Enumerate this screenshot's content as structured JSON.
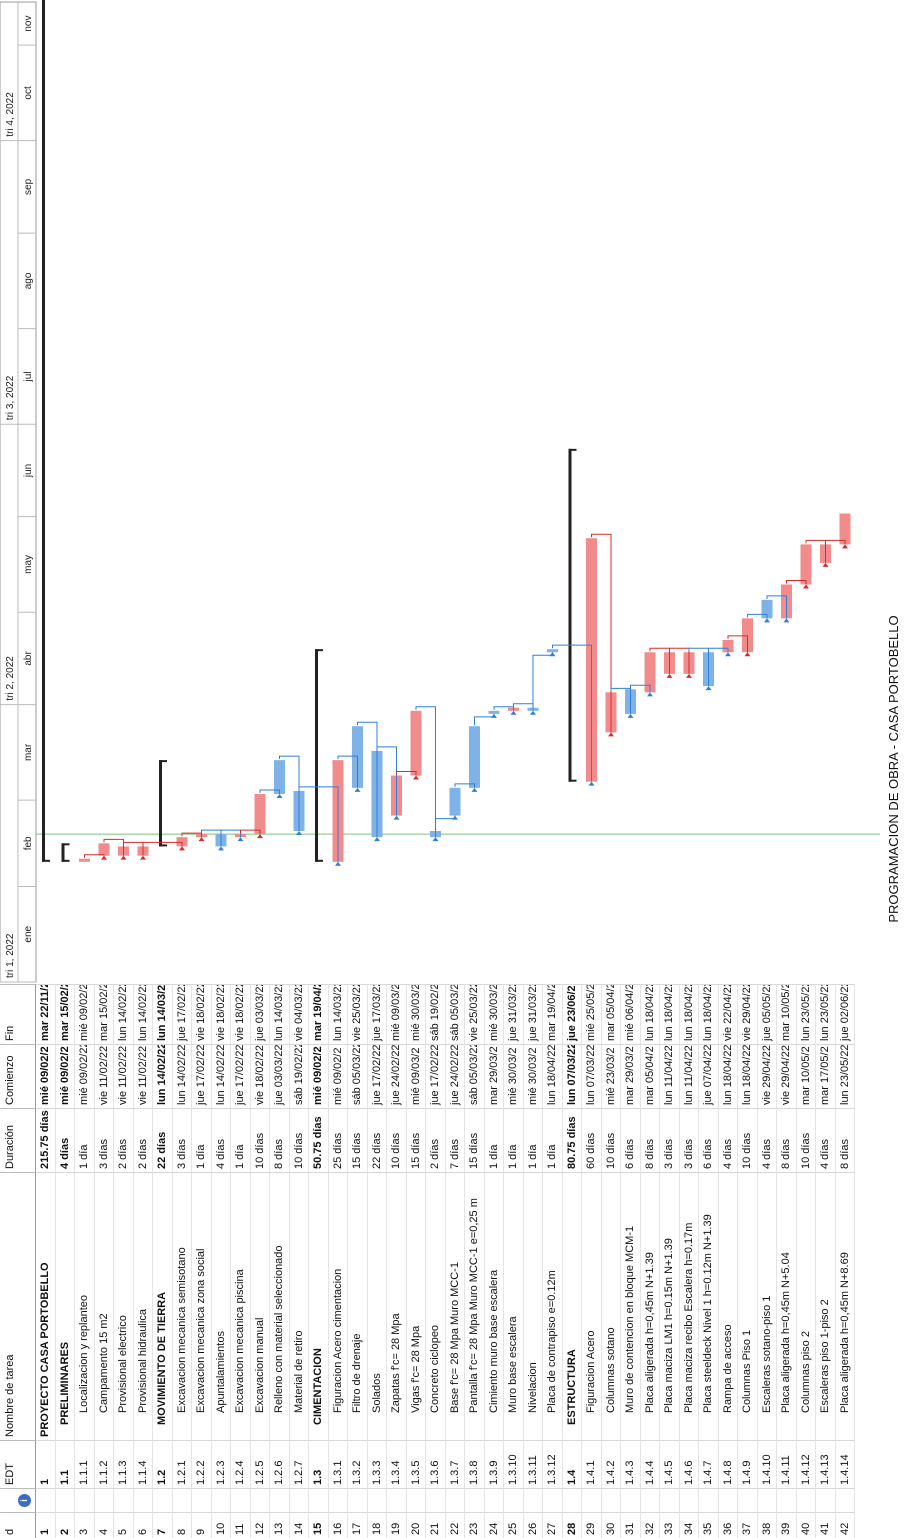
{
  "title": "PROGRAMACION DE OBRA - CASA PORTOBELLO",
  "columns": {
    "id": "d",
    "info_icon": "info-icon",
    "edt": "EDT",
    "name": "Nombre de tarea",
    "duration": "Duración",
    "start": "Comienzo",
    "finish": "Fin"
  },
  "timeline": {
    "quarters": [
      "tri 1, 2022",
      "tri 2, 2022",
      "tri 3, 2022",
      "tri 4, 2022"
    ],
    "months": [
      "ene",
      "feb",
      "mar",
      "abr",
      "may",
      "jun",
      "jul",
      "ago",
      "sep",
      "oct",
      "nov"
    ]
  },
  "tasks": [
    {
      "id": "1",
      "edt": "1",
      "name": "PROYECTO CASA PORTOBELLO",
      "duration": "215.75 días",
      "start": "mié 09/02/2",
      "finish": "mar 22/11/2",
      "bold": true,
      "indent": 0
    },
    {
      "id": "2",
      "edt": "1.1",
      "name": "PRELIMINARES",
      "duration": "4 días",
      "start": "mié 09/02/2",
      "finish": "mar 15/02/2",
      "bold": true,
      "indent": 1
    },
    {
      "id": "3",
      "edt": "1.1.1",
      "name": "Localizacion y replanteo",
      "duration": "1 día",
      "start": "mié 09/02/22",
      "finish": "mié 09/02/22",
      "bold": false,
      "indent": 2
    },
    {
      "id": "4",
      "edt": "1.1.2",
      "name": "Campamento 15 m2",
      "duration": "3 días",
      "start": "vie 11/02/22",
      "finish": "mar 15/02/22",
      "bold": false,
      "indent": 2
    },
    {
      "id": "5",
      "edt": "1.1.3",
      "name": "Provisional electrico",
      "duration": "2 días",
      "start": "vie 11/02/22",
      "finish": "lun 14/02/22",
      "bold": false,
      "indent": 2
    },
    {
      "id": "6",
      "edt": "1.1.4",
      "name": "Provisional hidraulica",
      "duration": "2 días",
      "start": "vie 11/02/22",
      "finish": "lun 14/02/22",
      "bold": false,
      "indent": 2
    },
    {
      "id": "7",
      "edt": "1.2",
      "name": "MOVIMIENTO DE TIERRA",
      "duration": "22 días",
      "start": "lun 14/02/22",
      "finish": "lun 14/03/22",
      "bold": true,
      "indent": 1
    },
    {
      "id": "8",
      "edt": "1.2.1",
      "name": "Excavacion mecanica semisotano",
      "duration": "3 días",
      "start": "lun 14/02/22",
      "finish": "jue 17/02/22",
      "bold": false,
      "indent": 2
    },
    {
      "id": "9",
      "edt": "1.2.2",
      "name": "Excavacion mecanica zona social",
      "duration": "1 día",
      "start": "jue 17/02/22",
      "finish": "vie 18/02/22",
      "bold": false,
      "indent": 2
    },
    {
      "id": "10",
      "edt": "1.2.3",
      "name": "Apuntalamientos",
      "duration": "4 días",
      "start": "lun 14/02/22",
      "finish": "vie 18/02/22",
      "bold": false,
      "indent": 2
    },
    {
      "id": "11",
      "edt": "1.2.4",
      "name": "Excavacion mecanica piscina",
      "duration": "1 día",
      "start": "jue 17/02/22",
      "finish": "vie 18/02/22",
      "bold": false,
      "indent": 2
    },
    {
      "id": "12",
      "edt": "1.2.5",
      "name": "Excavacion manual",
      "duration": "10 días",
      "start": "vie 18/02/22",
      "finish": "jue 03/03/22",
      "bold": false,
      "indent": 2
    },
    {
      "id": "13",
      "edt": "1.2.6",
      "name": "Relleno con material seleccionado",
      "duration": "8 días",
      "start": "jue 03/03/22",
      "finish": "lun 14/03/22",
      "bold": false,
      "indent": 2
    },
    {
      "id": "14",
      "edt": "1.2.7",
      "name": "Material de retiro",
      "duration": "10 días",
      "start": "sáb 19/02/22",
      "finish": "vie 04/03/22",
      "bold": false,
      "indent": 2
    },
    {
      "id": "15",
      "edt": "1.3",
      "name": "CIMENTACION",
      "duration": "50.75 días",
      "start": "mié 09/02/2",
      "finish": "mar 19/04/2",
      "bold": true,
      "indent": 1
    },
    {
      "id": "16",
      "edt": "1.3.1",
      "name": "Figuracion Acero cimentacion",
      "duration": "25 días",
      "start": "mié 09/02/2",
      "finish": "lun 14/03/22",
      "bold": false,
      "indent": 2
    },
    {
      "id": "17",
      "edt": "1.3.2",
      "name": "Filtro de drenaje",
      "duration": "15 días",
      "start": "sáb 05/03/22",
      "finish": "vie 25/03/22",
      "bold": false,
      "indent": 2
    },
    {
      "id": "18",
      "edt": "1.3.3",
      "name": "Solados",
      "duration": "22 días",
      "start": "jue 17/02/22",
      "finish": "jue 17/03/22",
      "bold": false,
      "indent": 2
    },
    {
      "id": "19",
      "edt": "1.3.4",
      "name": "Zapatas f'c= 28 Mpa",
      "duration": "10 días",
      "start": "jue 24/02/22",
      "finish": "mié 09/03/22",
      "bold": false,
      "indent": 2
    },
    {
      "id": "20",
      "edt": "1.3.5",
      "name": "Vigas f'c= 28 Mpa",
      "duration": "15 días",
      "start": "mié 09/03/2",
      "finish": "mié 30/03/22",
      "bold": false,
      "indent": 2
    },
    {
      "id": "21",
      "edt": "1.3.6",
      "name": "Concreto ciclopeo",
      "duration": "2 días",
      "start": "jue 17/02/22",
      "finish": "sáb 19/02/22",
      "bold": false,
      "indent": 2
    },
    {
      "id": "22",
      "edt": "1.3.7",
      "name": "Base f'c= 28 Mpa Muro MCC-1",
      "duration": "7 días",
      "start": "jue 24/02/22",
      "finish": "sáb 05/03/22",
      "bold": false,
      "indent": 2
    },
    {
      "id": "23",
      "edt": "1.3.8",
      "name": "Pantalla f'c= 28 Mpa  Muro MCC-1 e=0,25 m",
      "duration": "15 días",
      "start": "sáb 05/03/22",
      "finish": "vie 25/03/22",
      "bold": false,
      "indent": 2
    },
    {
      "id": "24",
      "edt": "1.3.9",
      "name": "Cimiento muro base escalera",
      "duration": "1 día",
      "start": "mar 29/03/2",
      "finish": "mié 30/03/22",
      "bold": false,
      "indent": 2
    },
    {
      "id": "25",
      "edt": "1.3.10",
      "name": "Muro base escalera",
      "duration": "1 día",
      "start": "mié 30/03/2",
      "finish": "jue 31/03/22",
      "bold": false,
      "indent": 2
    },
    {
      "id": "26",
      "edt": "1.3.11",
      "name": "Nivelacion",
      "duration": "1 día",
      "start": "mié 30/03/2",
      "finish": "jue 31/03/22",
      "bold": false,
      "indent": 2
    },
    {
      "id": "27",
      "edt": "1.3.12",
      "name": "Placa de contrapiso e=0.12m",
      "duration": "1 día",
      "start": "lun 18/04/22",
      "finish": "mar 19/04/22",
      "bold": false,
      "indent": 2
    },
    {
      "id": "28",
      "edt": "1.4",
      "name": "ESTRUCTURA",
      "duration": "80.75 días",
      "start": "lun 07/03/22",
      "finish": "jue 23/06/22",
      "bold": true,
      "indent": 1
    },
    {
      "id": "29",
      "edt": "1.4.1",
      "name": "Figuracion Acero",
      "duration": "60 días",
      "start": "lun 07/03/22",
      "finish": "mié 25/05/22",
      "bold": false,
      "indent": 2
    },
    {
      "id": "30",
      "edt": "1.4.2",
      "name": "Columnas sotano",
      "duration": "10 días",
      "start": "mié 23/03/2",
      "finish": "mar 05/04/22",
      "bold": false,
      "indent": 2
    },
    {
      "id": "31",
      "edt": "1.4.3",
      "name": "Muro de contencion en bloque MCM-1",
      "duration": "6 días",
      "start": "mar 29/03/2",
      "finish": "mié 06/04/22",
      "bold": false,
      "indent": 2
    },
    {
      "id": "32",
      "edt": "1.4.4",
      "name": "Placa aligerada h=0,45m N+1.39",
      "duration": "8 días",
      "start": "mar 05/04/2",
      "finish": "lun 18/04/22",
      "bold": false,
      "indent": 2
    },
    {
      "id": "33",
      "edt": "1.4.5",
      "name": "Placa maciza LM1 h=0.15m N+1.39",
      "duration": "3 días",
      "start": "lun 11/04/22",
      "finish": "lun 18/04/22",
      "bold": false,
      "indent": 2
    },
    {
      "id": "34",
      "edt": "1.4.6",
      "name": "Placa maciza recibo Escalera h=0.17m",
      "duration": "3 días",
      "start": "lun 11/04/22",
      "finish": "lun 18/04/22",
      "bold": false,
      "indent": 2
    },
    {
      "id": "35",
      "edt": "1.4.7",
      "name": "Placa steeldeck Nivel 1 h=0.12m N+1.39",
      "duration": "6 días",
      "start": "jue 07/04/22",
      "finish": "lun 18/04/22",
      "bold": false,
      "indent": 2
    },
    {
      "id": "36",
      "edt": "1.4.8",
      "name": "Rampa de acceso",
      "duration": "4 días",
      "start": "lun 18/04/22",
      "finish": "vie 22/04/22",
      "bold": false,
      "indent": 2
    },
    {
      "id": "37",
      "edt": "1.4.9",
      "name": "Columnas Piso 1",
      "duration": "10 días",
      "start": "lun 18/04/22",
      "finish": "vie 29/04/22",
      "bold": false,
      "indent": 2
    },
    {
      "id": "38",
      "edt": "1.4.10",
      "name": "Escaleras sotano-piso 1",
      "duration": "4 días",
      "start": "vie 29/04/22",
      "finish": "jue 05/05/22",
      "bold": false,
      "indent": 2
    },
    {
      "id": "39",
      "edt": "1.4.11",
      "name": "Placa aligerada h=0,45m N+5.04",
      "duration": "8 días",
      "start": "vie 29/04/22",
      "finish": "mar 10/05/22",
      "bold": false,
      "indent": 2
    },
    {
      "id": "40",
      "edt": "1.4.12",
      "name": "Columnas piso 2",
      "duration": "10 días",
      "start": "mar 10/05/2",
      "finish": "lun 23/05/22",
      "bold": false,
      "indent": 2
    },
    {
      "id": "41",
      "edt": "1.4.13",
      "name": "Escaleras piso 1-piso 2",
      "duration": "4 días",
      "start": "mar 17/05/2",
      "finish": "lun 23/05/22",
      "bold": false,
      "indent": 2
    },
    {
      "id": "42",
      "edt": "1.4.14",
      "name": "Placa aligerada h=0,45m N+8.69",
      "duration": "8 días",
      "start": "lun 23/05/22",
      "finish": "jue 02/06/22",
      "bold": false,
      "indent": 2
    }
  ],
  "chart_data": {
    "type": "gantt",
    "title": "PROGRAMACION DE OBRA - CASA PORTOBELLO",
    "x_axis": {
      "start": "2022-01-01",
      "end": "2022-11-15",
      "quarters": [
        "tri 1, 2022",
        "tri 2, 2022",
        "tri 3, 2022",
        "tri 4, 2022"
      ],
      "months": [
        "ene",
        "feb",
        "mar",
        "abr",
        "may",
        "jun",
        "jul",
        "ago",
        "sep",
        "oct",
        "nov"
      ]
    },
    "status_date": "2022-02-18",
    "bars": [
      {
        "task": "1",
        "start": "2022-02-09",
        "end": "2022-11-22",
        "kind": "summary"
      },
      {
        "task": "2",
        "start": "2022-02-09",
        "end": "2022-02-15",
        "kind": "summary"
      },
      {
        "task": "3",
        "start": "2022-02-09",
        "end": "2022-02-10",
        "kind": "critical"
      },
      {
        "task": "4",
        "start": "2022-02-11",
        "end": "2022-02-15",
        "kind": "critical"
      },
      {
        "task": "5",
        "start": "2022-02-11",
        "end": "2022-02-14",
        "kind": "critical"
      },
      {
        "task": "6",
        "start": "2022-02-11",
        "end": "2022-02-14",
        "kind": "critical"
      },
      {
        "task": "7",
        "start": "2022-02-14",
        "end": "2022-03-14",
        "kind": "summary"
      },
      {
        "task": "8",
        "start": "2022-02-14",
        "end": "2022-02-17",
        "kind": "critical"
      },
      {
        "task": "9",
        "start": "2022-02-17",
        "end": "2022-02-18",
        "kind": "critical"
      },
      {
        "task": "10",
        "start": "2022-02-14",
        "end": "2022-02-18",
        "kind": "normal"
      },
      {
        "task": "11",
        "start": "2022-02-17",
        "end": "2022-02-18",
        "kind": "critical"
      },
      {
        "task": "12",
        "start": "2022-02-18",
        "end": "2022-03-03",
        "kind": "critical"
      },
      {
        "task": "13",
        "start": "2022-03-03",
        "end": "2022-03-14",
        "kind": "normal"
      },
      {
        "task": "14",
        "start": "2022-02-19",
        "end": "2022-03-04",
        "kind": "normal"
      },
      {
        "task": "15",
        "start": "2022-02-09",
        "end": "2022-04-19",
        "kind": "summary"
      },
      {
        "task": "16",
        "start": "2022-02-09",
        "end": "2022-03-14",
        "kind": "critical"
      },
      {
        "task": "17",
        "start": "2022-03-05",
        "end": "2022-03-25",
        "kind": "normal"
      },
      {
        "task": "18",
        "start": "2022-02-17",
        "end": "2022-03-17",
        "kind": "normal"
      },
      {
        "task": "19",
        "start": "2022-02-24",
        "end": "2022-03-09",
        "kind": "critical"
      },
      {
        "task": "20",
        "start": "2022-03-09",
        "end": "2022-03-30",
        "kind": "critical"
      },
      {
        "task": "21",
        "start": "2022-02-17",
        "end": "2022-02-19",
        "kind": "normal"
      },
      {
        "task": "22",
        "start": "2022-02-24",
        "end": "2022-03-05",
        "kind": "normal"
      },
      {
        "task": "23",
        "start": "2022-03-05",
        "end": "2022-03-25",
        "kind": "normal"
      },
      {
        "task": "24",
        "start": "2022-03-29",
        "end": "2022-03-30",
        "kind": "normal"
      },
      {
        "task": "25",
        "start": "2022-03-30",
        "end": "2022-03-31",
        "kind": "critical"
      },
      {
        "task": "26",
        "start": "2022-03-30",
        "end": "2022-03-31",
        "kind": "normal"
      },
      {
        "task": "27",
        "start": "2022-04-18",
        "end": "2022-04-19",
        "kind": "normal"
      },
      {
        "task": "28",
        "start": "2022-03-07",
        "end": "2022-06-23",
        "kind": "summary"
      },
      {
        "task": "29",
        "start": "2022-03-07",
        "end": "2022-05-25",
        "kind": "critical"
      },
      {
        "task": "30",
        "start": "2022-03-23",
        "end": "2022-04-05",
        "kind": "critical"
      },
      {
        "task": "31",
        "start": "2022-03-29",
        "end": "2022-04-06",
        "kind": "normal"
      },
      {
        "task": "32",
        "start": "2022-04-05",
        "end": "2022-04-18",
        "kind": "critical"
      },
      {
        "task": "33",
        "start": "2022-04-11",
        "end": "2022-04-18",
        "kind": "critical"
      },
      {
        "task": "34",
        "start": "2022-04-11",
        "end": "2022-04-18",
        "kind": "critical"
      },
      {
        "task": "35",
        "start": "2022-04-07",
        "end": "2022-04-18",
        "kind": "normal"
      },
      {
        "task": "36",
        "start": "2022-04-18",
        "end": "2022-04-22",
        "kind": "critical"
      },
      {
        "task": "37",
        "start": "2022-04-18",
        "end": "2022-04-29",
        "kind": "critical"
      },
      {
        "task": "38",
        "start": "2022-04-29",
        "end": "2022-05-05",
        "kind": "normal"
      },
      {
        "task": "39",
        "start": "2022-04-29",
        "end": "2022-05-10",
        "kind": "critical"
      },
      {
        "task": "40",
        "start": "2022-05-10",
        "end": "2022-05-23",
        "kind": "critical"
      },
      {
        "task": "41",
        "start": "2022-05-17",
        "end": "2022-05-23",
        "kind": "critical"
      },
      {
        "task": "42",
        "start": "2022-05-23",
        "end": "2022-06-02",
        "kind": "critical"
      }
    ],
    "colors": {
      "critical": "#f28b8b",
      "normal": "#7fb3e8",
      "summary": "#222222",
      "link_critical": "#d42c2c",
      "link_normal": "#2f7fd6",
      "status_line": "#7bc47b"
    }
  }
}
